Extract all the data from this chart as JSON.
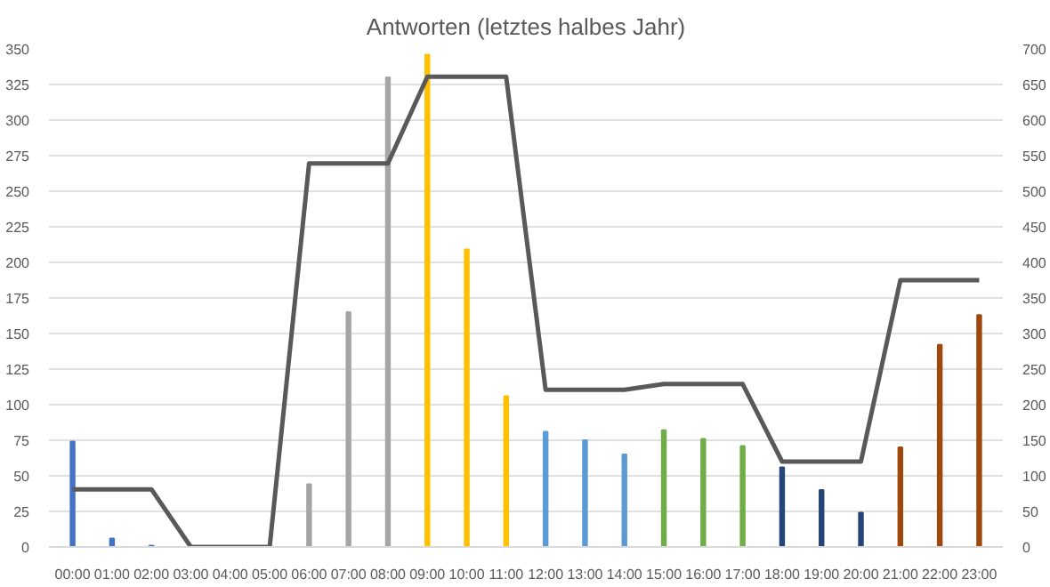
{
  "chart_data": {
    "type": "bar",
    "title": "Antworten (letztes halbes Jahr)",
    "categories": [
      "00:00",
      "01:00",
      "02:00",
      "03:00",
      "04:00",
      "05:00",
      "06:00",
      "07:00",
      "08:00",
      "09:00",
      "10:00",
      "11:00",
      "12:00",
      "13:00",
      "14:00",
      "15:00",
      "16:00",
      "17:00",
      "18:00",
      "19:00",
      "20:00",
      "21:00",
      "22:00",
      "23:00"
    ],
    "series": [
      {
        "values": [
          74,
          6,
          1,
          0,
          0,
          0,
          44,
          165,
          330,
          346,
          209,
          106,
          81,
          75,
          65,
          82,
          76,
          71,
          56,
          40,
          24,
          70,
          142,
          163
        ],
        "colors": [
          "#4472c4",
          "#4472c4",
          "#4472c4",
          "#4472c4",
          "#4472c4",
          "#4472c4",
          "#a5a5a5",
          "#a5a5a5",
          "#a5a5a5",
          "#ffc000",
          "#ffc000",
          "#ffc000",
          "#5b9bd5",
          "#5b9bd5",
          "#5b9bd5",
          "#70ad47",
          "#70ad47",
          "#70ad47",
          "#264478",
          "#264478",
          "#264478",
          "#9e480e",
          "#9e480e",
          "#9e480e"
        ]
      },
      {
        "type": "line",
        "axis": "y2",
        "color": "#595959",
        "values": [
          81,
          81,
          81,
          0,
          0,
          0,
          539,
          539,
          539,
          661,
          661,
          661,
          221,
          221,
          221,
          229,
          229,
          229,
          120,
          120,
          120,
          375,
          375,
          375
        ]
      }
    ],
    "ylim": [
      0,
      350
    ],
    "yticks": [
      0,
      25,
      50,
      75,
      100,
      125,
      150,
      175,
      200,
      225,
      250,
      275,
      300,
      325,
      350
    ],
    "y2lim": [
      0,
      700
    ],
    "y2ticks": [
      0,
      50,
      100,
      150,
      200,
      250,
      300,
      350,
      400,
      450,
      500,
      550,
      600,
      650,
      700
    ],
    "grid": "y"
  }
}
